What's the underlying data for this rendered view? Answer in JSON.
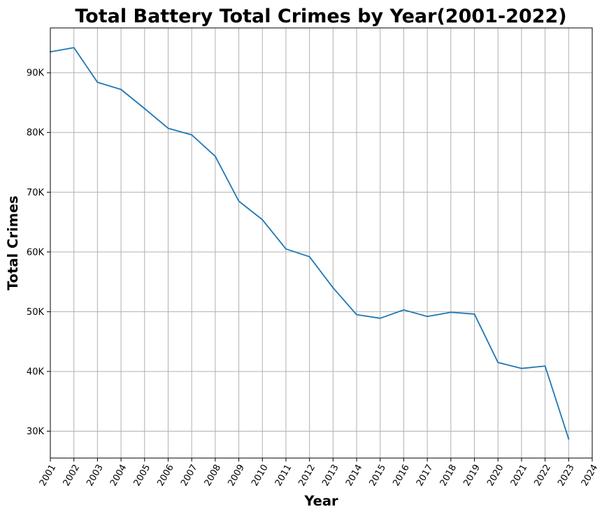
{
  "chart_data": {
    "type": "line",
    "title": "Total Battery Total Crimes by Year(2001-2022)",
    "xlabel": "Year",
    "ylabel": "Total Crimes",
    "xlim": [
      2001,
      2024
    ],
    "ylim": [
      25500,
      97500
    ],
    "x_ticks": [
      "2001",
      "2002",
      "2003",
      "2004",
      "2005",
      "2006",
      "2007",
      "2008",
      "2009",
      "2010",
      "2011",
      "2012",
      "2013",
      "2014",
      "2015",
      "2016",
      "2017",
      "2018",
      "2019",
      "2020",
      "2021",
      "2022",
      "2023",
      "2024"
    ],
    "y_ticks": [
      {
        "value": 30000,
        "label": "30K"
      },
      {
        "value": 40000,
        "label": "40K"
      },
      {
        "value": 50000,
        "label": "50K"
      },
      {
        "value": 60000,
        "label": "60K"
      },
      {
        "value": 70000,
        "label": "70K"
      },
      {
        "value": 80000,
        "label": "80K"
      },
      {
        "value": 90000,
        "label": "90K"
      }
    ],
    "grid": true,
    "series": [
      {
        "color": "#1f77b4",
        "x": [
          2001,
          2002,
          2003,
          2004,
          2005,
          2006,
          2007,
          2008,
          2009,
          2010,
          2011,
          2012,
          2013,
          2014,
          2015,
          2016,
          2017,
          2018,
          2019,
          2020,
          2021,
          2022,
          2023
        ],
        "y": [
          93500,
          94200,
          88400,
          87200,
          84000,
          80700,
          79600,
          76000,
          68500,
          65400,
          60500,
          59200,
          54000,
          49500,
          48900,
          50300,
          49200,
          49900,
          49600,
          41500,
          40500,
          40900,
          28700
        ]
      }
    ]
  }
}
